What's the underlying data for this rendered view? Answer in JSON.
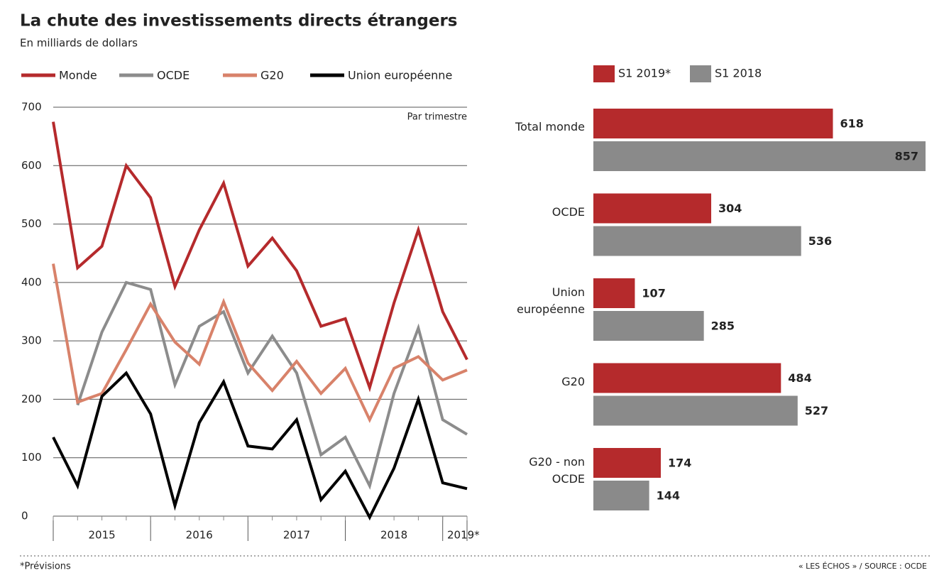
{
  "title": "La chute des investissements directs étrangers",
  "subtitle": "En milliards de dollars",
  "footnote": "*Prévisions",
  "source": "« LES ÉCHOS » / SOURCE : OCDE",
  "chart_data": [
    {
      "type": "line",
      "annotation": "Par trimestre",
      "x": [
        null,
        null,
        null,
        null,
        null,
        null,
        null,
        null,
        null,
        null,
        null,
        null,
        null,
        null,
        null,
        null,
        null,
        null
      ],
      "year_labels": [
        "2015",
        "2016",
        "2017",
        "2018",
        "2019*"
      ],
      "ylim": [
        0,
        700
      ],
      "yticks": [
        0,
        100,
        200,
        300,
        400,
        500,
        600,
        700
      ],
      "grid": true,
      "series": [
        {
          "name": "Monde",
          "color": "#b52a2c",
          "values": [
            675,
            425,
            462,
            600,
            545,
            393,
            490,
            570,
            428,
            476,
            420,
            325,
            338,
            220,
            365,
            490,
            350,
            268
          ]
        },
        {
          "name": "OCDE",
          "color": "#8c8c8c",
          "values": [
            null,
            190,
            315,
            400,
            388,
            225,
            325,
            350,
            245,
            308,
            245,
            105,
            135,
            52,
            210,
            322,
            165,
            140
          ]
        },
        {
          "name": "G20",
          "color": "#d8826a",
          "values": [
            432,
            195,
            210,
            285,
            363,
            298,
            260,
            367,
            262,
            215,
            265,
            210,
            253,
            165,
            253,
            273,
            233,
            250
          ]
        },
        {
          "name": "Union européenne",
          "color": "#000000",
          "values": [
            135,
            52,
            205,
            245,
            175,
            18,
            160,
            230,
            120,
            115,
            165,
            28,
            77,
            -2,
            82,
            200,
            57,
            47
          ]
        }
      ]
    },
    {
      "type": "hbar",
      "categories": [
        "Total monde",
        "OCDE",
        "Union européenne",
        "G20",
        "G20 - non OCDE"
      ],
      "series": [
        {
          "name": "S1 2019*",
          "color": "#b52a2c",
          "values": [
            618,
            304,
            107,
            484,
            174
          ]
        },
        {
          "name": "S1 2018",
          "color": "#8a8a8a",
          "values": [
            857,
            536,
            285,
            527,
            144
          ]
        }
      ]
    }
  ]
}
